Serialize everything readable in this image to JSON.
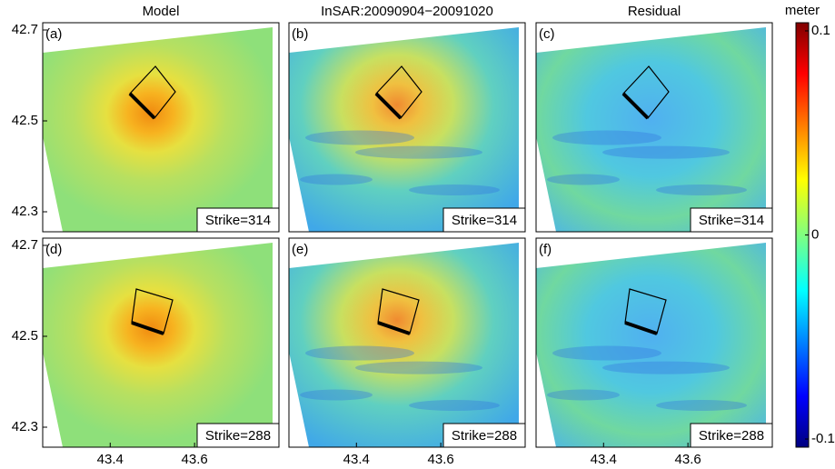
{
  "chart_data": [
    {
      "type": "map",
      "title": "Model",
      "label": "(a)",
      "annotation": "Strike=314",
      "xlim": [
        43.24,
        43.8
      ],
      "ylim": [
        42.256,
        42.716
      ],
      "yticks": [
        42.3,
        42.5,
        42.7
      ]
    },
    {
      "type": "map",
      "title": "InSAR:20090904−20091020",
      "label": "(b)",
      "annotation": "Strike=314",
      "xlim": [
        43.24,
        43.8
      ],
      "ylim": [
        42.256,
        42.716
      ]
    },
    {
      "type": "map",
      "title": "Residual",
      "label": "(c)",
      "annotation": "Strike=314",
      "xlim": [
        43.24,
        43.8
      ],
      "ylim": [
        42.256,
        42.716
      ]
    },
    {
      "type": "map",
      "label": "(d)",
      "annotation": "Strike=288",
      "xlim": [
        43.24,
        43.8
      ],
      "ylim": [
        42.256,
        42.716
      ],
      "yticks": [
        42.3,
        42.5,
        42.7
      ],
      "xticks": [
        43.4,
        43.6
      ]
    },
    {
      "type": "map",
      "label": "(e)",
      "annotation": "Strike=288",
      "xlim": [
        43.24,
        43.8
      ],
      "ylim": [
        42.256,
        42.716
      ],
      "xticks": [
        43.4,
        43.6
      ]
    },
    {
      "type": "map",
      "label": "(f)",
      "annotation": "Strike=288",
      "xlim": [
        43.24,
        43.8
      ],
      "ylim": [
        42.256,
        42.716
      ],
      "xticks": [
        43.4,
        43.6
      ]
    },
    {
      "type": "colorbar",
      "title": "meter",
      "ylim": [
        -0.104,
        0.104
      ],
      "yticks": [
        0.1,
        0,
        -0.1
      ]
    }
  ]
}
